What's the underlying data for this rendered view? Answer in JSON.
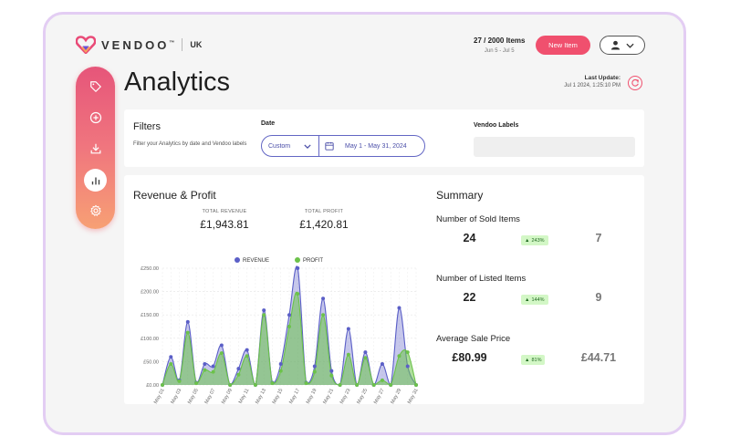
{
  "brand": {
    "name": "VENDOO",
    "tm": "™",
    "region": "UK"
  },
  "header": {
    "items_count": "27 / 2000 Items",
    "items_range": "Jun 5 - Jul 5",
    "new_item_label": "New Item"
  },
  "sidebar": {
    "items": [
      {
        "icon": "tag-icon"
      },
      {
        "icon": "plus-circle-icon"
      },
      {
        "icon": "download-icon"
      },
      {
        "icon": "bar-chart-icon",
        "active": true
      },
      {
        "icon": "gear-icon"
      }
    ]
  },
  "page": {
    "title": "Analytics",
    "last_update_label": "Last Update:",
    "last_update_value": "Jul 1 2024, 1:25:10 PM"
  },
  "filters": {
    "title": "Filters",
    "description": "Filter your Analytics by date and Vendoo labels",
    "date_label": "Date",
    "date_select": "Custom",
    "date_range": "May 1 - May 31, 2024",
    "labels_label": "Vendoo Labels"
  },
  "revenue": {
    "title": "Revenue & Profit",
    "total_revenue_label": "TOTAL REVENUE",
    "total_revenue_value": "£1,943.81",
    "total_profit_label": "TOTAL PROFIT",
    "total_profit_value": "£1,420.81"
  },
  "summary": {
    "title": "Summary",
    "metrics": [
      {
        "label": "Number of Sold Items",
        "current": "24",
        "change": "243%",
        "previous": "7"
      },
      {
        "label": "Number of Listed Items",
        "current": "22",
        "change": "144%",
        "previous": "9"
      },
      {
        "label": "Average Sale Price",
        "current": "£80.99",
        "change": "81%",
        "previous": "£44.71"
      }
    ]
  },
  "colors": {
    "accent": "#f0506e",
    "revenue": "#5b5fc7",
    "profit": "#6cc24a"
  },
  "chart_data": {
    "type": "area",
    "legend": [
      "REVENUE",
      "PROFIT"
    ],
    "x_tick_labels": [
      "May 01",
      "May 03",
      "May 05",
      "May 07",
      "May 09",
      "May 11",
      "May 13",
      "May 15",
      "May 17",
      "May 19",
      "May 21",
      "May 23",
      "May 25",
      "May 27",
      "May 29",
      "May 31"
    ],
    "y_tick_labels": [
      "£0.00",
      "£50.00",
      "£100.00",
      "£150.00",
      "£200.00",
      "£250.00"
    ],
    "ylim": [
      0,
      250
    ],
    "x": [
      1,
      2,
      3,
      4,
      5,
      6,
      7,
      8,
      9,
      10,
      11,
      12,
      13,
      14,
      15,
      16,
      17,
      18,
      19,
      20,
      21,
      22,
      23,
      24,
      25,
      26,
      27,
      28,
      29,
      30,
      31
    ],
    "series": [
      {
        "name": "REVENUE",
        "values": [
          0,
          60,
          10,
          135,
          5,
          45,
          40,
          85,
          0,
          35,
          75,
          0,
          160,
          5,
          45,
          150,
          250,
          5,
          40,
          185,
          30,
          0,
          120,
          0,
          70,
          0,
          45,
          0,
          165,
          40,
          0
        ]
      },
      {
        "name": "PROFIT",
        "values": [
          0,
          45,
          8,
          112,
          4,
          32,
          28,
          68,
          0,
          22,
          62,
          0,
          150,
          4,
          30,
          125,
          195,
          4,
          28,
          150,
          20,
          0,
          65,
          0,
          58,
          0,
          10,
          0,
          62,
          70,
          0
        ]
      }
    ]
  }
}
